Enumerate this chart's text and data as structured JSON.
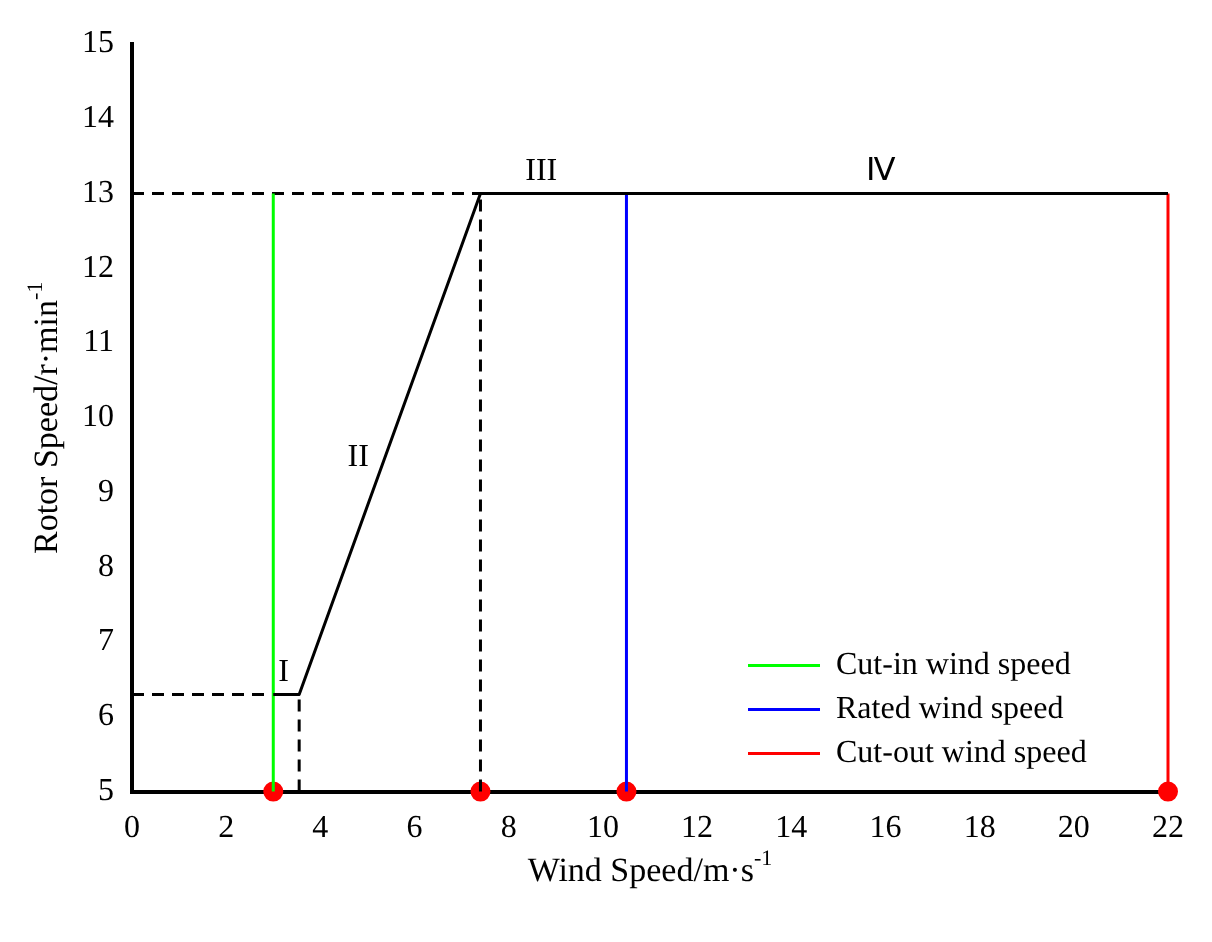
{
  "chart_data": {
    "type": "line",
    "xlabel": "Wind Speed/m·s$^{-1}$",
    "ylabel": "Rotor Speed/r·min$^{-1}$",
    "xlim": [
      0,
      22
    ],
    "xticks": [
      0,
      2,
      4,
      6,
      8,
      10,
      12,
      14,
      16,
      18,
      20,
      22
    ],
    "ylim": [
      5,
      15
    ],
    "yticks": [
      5,
      6,
      7,
      8,
      9,
      10,
      11,
      12,
      13,
      14,
      15
    ],
    "legend": "bottom right",
    "marker": "none",
    "series": [
      {
        "color": "#000000",
        "x": [
          3,
          3.55,
          7.4,
          22
        ],
        "values": [
          6.3,
          6.3,
          13,
          13
        ]
      },
      {
        "name": "Cut-in wind speed",
        "color": "#00ff00",
        "x": [
          3,
          3
        ],
        "values": [
          5,
          13
        ]
      },
      {
        "name": "Rated wind speed",
        "color": "#0000ff",
        "x": [
          10.5,
          10.5
        ],
        "values": [
          5,
          13
        ]
      },
      {
        "name": "Cut-out wind speed",
        "color": "#ff0000",
        "x": [
          22,
          22
        ],
        "values": [
          5,
          13
        ]
      },
      {
        "color": "#000000",
        "line_style": "dashed",
        "x": [
          0,
          7.4
        ],
        "values": [
          13,
          13
        ]
      },
      {
        "color": "#000000",
        "line_style": "dashed",
        "x": [
          0,
          3.55
        ],
        "values": [
          6.3,
          6.3
        ]
      },
      {
        "color": "#000000",
        "line_style": "dashed",
        "x": [
          3.55,
          3.55
        ],
        "values": [
          5,
          6.3
        ]
      },
      {
        "color": "#000000",
        "line_style": "dashed",
        "x": [
          7.4,
          7.4
        ],
        "values": [
          5,
          13
        ]
      },
      {
        "type": "scatter",
        "color": "#ff0000",
        "marker": "circle",
        "x": [
          3,
          7.4,
          10.5,
          22
        ],
        "values": [
          5,
          5,
          5,
          5
        ]
      }
    ],
    "annotations": [
      {
        "text": "I",
        "x": 3.5,
        "y": 6.3
      },
      {
        "text": "II",
        "x": 5.2,
        "y": 9.17
      },
      {
        "text": "III",
        "x": 9.2,
        "y": 13
      },
      {
        "text": "Ⅳ",
        "x": 16.4,
        "y": 13
      }
    ]
  }
}
